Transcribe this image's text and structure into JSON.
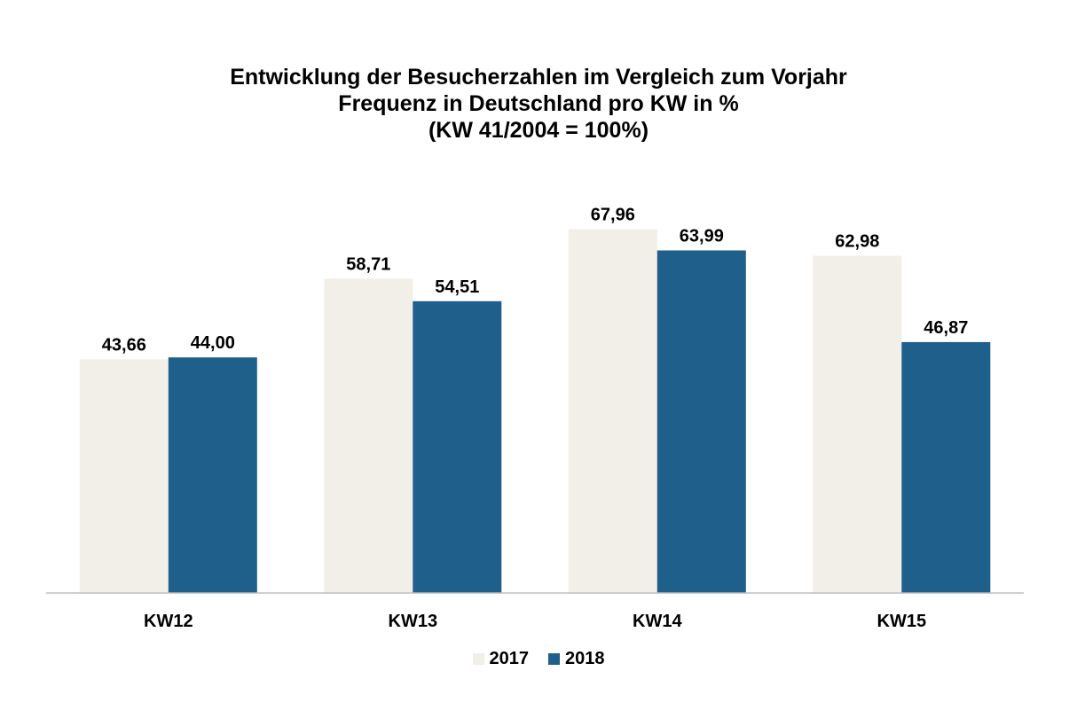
{
  "chart_data": {
    "type": "bar",
    "title_lines": [
      "Entwicklung der Besucherzahlen im Vergleich zum Vorjahr",
      "Frequenz in Deutschland pro KW in %",
      "(KW 41/2004 = 100%)"
    ],
    "xlabel": "",
    "ylabel": "",
    "categories": [
      "KW12",
      "KW13",
      "KW14",
      "KW15"
    ],
    "series": [
      {
        "name": "2017",
        "color": "#f2efe8",
        "values": [
          43.66,
          58.71,
          67.96,
          62.98
        ],
        "labels": [
          "43,66",
          "58,71",
          "67,96",
          "62,98"
        ]
      },
      {
        "name": "2018",
        "color": "#1f5f8b",
        "values": [
          44.0,
          54.51,
          63.99,
          46.87
        ],
        "labels": [
          "44,00",
          "54,51",
          "63,99",
          "46,87"
        ]
      }
    ],
    "ylim": [
      0,
      70
    ],
    "grid": false,
    "legend_position": "bottom-center"
  }
}
